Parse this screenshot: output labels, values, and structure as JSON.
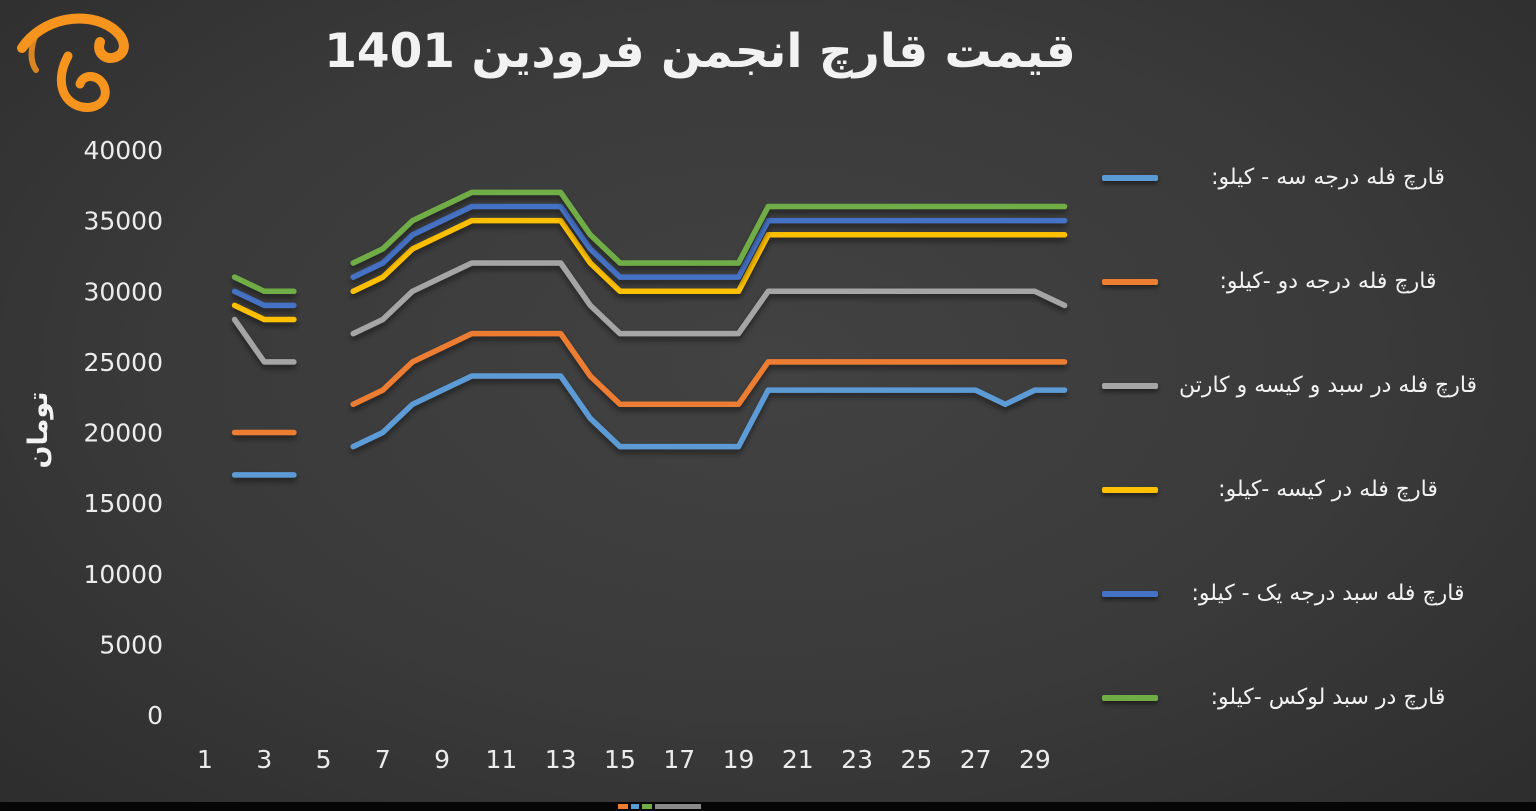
{
  "chart_data": {
    "type": "line",
    "title": "قیمت قارچ انجمن فرودین 1401",
    "ylabel": "تومان",
    "xlabel": "",
    "x_range": [
      1,
      30
    ],
    "xticks": [
      1,
      3,
      5,
      7,
      9,
      11,
      13,
      15,
      17,
      19,
      21,
      23,
      25,
      27,
      29
    ],
    "yticks": [
      0,
      5000,
      10000,
      15000,
      20000,
      25000,
      30000,
      35000,
      40000
    ],
    "ylim": [
      0,
      40000
    ],
    "grid": false,
    "legend_position": "right",
    "background_color": "#3a3a3a",
    "series": [
      {
        "id": "bulk-grade-three",
        "name": "قارچ فله درجه سه - کیلو:",
        "color": "#5B9BD5",
        "values": [
          null,
          17000,
          17000,
          17000,
          null,
          19000,
          20000,
          22000,
          23000,
          24000,
          24000,
          24000,
          24000,
          21000,
          19000,
          19000,
          19000,
          19000,
          19000,
          23000,
          23000,
          23000,
          23000,
          23000,
          23000,
          23000,
          23000,
          22000,
          23000,
          23000
        ]
      },
      {
        "id": "bulk-grade-two",
        "name": "قارچ فله درجه دو -کیلو:",
        "color": "#ED7D31",
        "values": [
          null,
          20000,
          20000,
          20000,
          null,
          22000,
          23000,
          25000,
          26000,
          27000,
          27000,
          27000,
          27000,
          24000,
          22000,
          22000,
          22000,
          22000,
          22000,
          25000,
          25000,
          25000,
          25000,
          25000,
          25000,
          25000,
          25000,
          25000,
          25000,
          25000
        ]
      },
      {
        "id": "bulk-basket-bag-carton",
        "name": "قارچ فله در سبد و کیسه و کارتن",
        "color": "#A5A5A5",
        "values": [
          null,
          28000,
          25000,
          25000,
          null,
          27000,
          28000,
          30000,
          31000,
          32000,
          32000,
          32000,
          32000,
          29000,
          27000,
          27000,
          27000,
          27000,
          27000,
          30000,
          30000,
          30000,
          30000,
          30000,
          30000,
          30000,
          30000,
          30000,
          30000,
          29000
        ]
      },
      {
        "id": "bulk-in-bag",
        "name": "قارچ فله در کیسه -کیلو:",
        "color": "#FFC000",
        "values": [
          null,
          29000,
          28000,
          28000,
          null,
          30000,
          31000,
          33000,
          34000,
          35000,
          35000,
          35000,
          35000,
          32000,
          30000,
          30000,
          30000,
          30000,
          30000,
          34000,
          34000,
          34000,
          34000,
          34000,
          34000,
          34000,
          34000,
          34000,
          34000,
          34000
        ]
      },
      {
        "id": "bulk-basket-grade-one",
        "name": "قارچ فله سبد درجه یک - کیلو:",
        "color": "#4472C4",
        "values": [
          null,
          30000,
          29000,
          29000,
          null,
          31000,
          32000,
          34000,
          35000,
          36000,
          36000,
          36000,
          36000,
          33000,
          31000,
          31000,
          31000,
          31000,
          31000,
          35000,
          35000,
          35000,
          35000,
          35000,
          35000,
          35000,
          35000,
          35000,
          35000,
          35000
        ]
      },
      {
        "id": "luxury-basket",
        "name": "قارچ در سبد لوکس -کیلو:",
        "color": "#70AD47",
        "values": [
          null,
          31000,
          30000,
          30000,
          null,
          32000,
          33000,
          35000,
          36000,
          37000,
          37000,
          37000,
          37000,
          34000,
          32000,
          32000,
          32000,
          32000,
          32000,
          36000,
          36000,
          36000,
          36000,
          36000,
          36000,
          36000,
          36000,
          36000,
          36000,
          36000
        ]
      }
    ]
  },
  "logo": {
    "color": "#F7941D"
  },
  "bottom_bar": {
    "background": "#060606",
    "segments": [
      {
        "x": 618,
        "w": 10,
        "color": "#ED7D31"
      },
      {
        "x": 631,
        "w": 8,
        "color": "#5B9BD5"
      },
      {
        "x": 642,
        "w": 10,
        "color": "#70AD47"
      },
      {
        "x": 655,
        "w": 46,
        "color": "#8a8a8a"
      }
    ]
  }
}
